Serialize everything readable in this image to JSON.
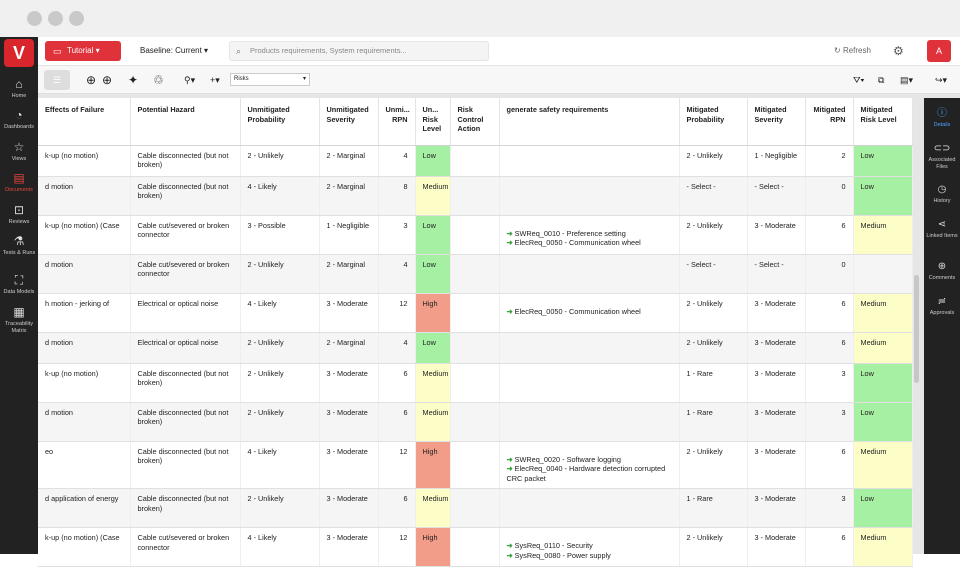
{
  "topbar": {
    "tutorial_label": "Tutorial",
    "baseline_label": "Baseline: Current",
    "search_placeholder": "Products requirements, System requirements...",
    "refresh_label": "Refresh",
    "red_button_label": "A"
  },
  "toolbar": {
    "view_select": "Risks"
  },
  "left_nav": [
    {
      "label": "Home",
      "icon": "home-icon"
    },
    {
      "label": "Dashboards",
      "icon": "dashboard-icon"
    },
    {
      "label": "Views",
      "icon": "star-icon"
    },
    {
      "label": "Documents",
      "icon": "document-icon",
      "active": true
    },
    {
      "label": "Reviews",
      "icon": "review-icon"
    },
    {
      "label": "Tests & Runs",
      "icon": "flask-icon"
    },
    {
      "label": "Data Models",
      "icon": "data-model-icon"
    },
    {
      "label": "Traceability Matrix",
      "icon": "matrix-icon"
    }
  ],
  "right_panel": [
    {
      "label": "Details",
      "icon": "info-icon",
      "active": true
    },
    {
      "label": "Associated Files",
      "icon": "attachment-icon"
    },
    {
      "label": "History",
      "icon": "history-icon"
    },
    {
      "label": "Linked Items",
      "icon": "share-icon"
    },
    {
      "label": "Comments",
      "icon": "comment-icon"
    },
    {
      "label": "Approvals",
      "icon": "approval-icon"
    }
  ],
  "table": {
    "columns": [
      {
        "label": "Effects of Failure"
      },
      {
        "label": "Potential Hazard"
      },
      {
        "label": "Unmitigated Probability"
      },
      {
        "label": "Unmitigated Severity"
      },
      {
        "label": "Unmi... RPN",
        "num": true
      },
      {
        "label": "Un... Risk Level"
      },
      {
        "label": "Risk Control Action"
      },
      {
        "label": "generate safety requirements"
      },
      {
        "label": "Mitigated Probability"
      },
      {
        "label": "Mitigated Severity"
      },
      {
        "label": "Mitigated RPN",
        "num": true
      },
      {
        "label": "Mitigated Risk Level"
      }
    ],
    "rows": [
      {
        "effect": "k-up (no motion)",
        "hazard": "Cable disconnected (but not broken)",
        "uprob": "2 - Unlikely",
        "usev": "2 - Marginal",
        "urpn": "4",
        "ulevel": "Low",
        "action": "",
        "reqs": [],
        "mprob": "2 - Unlikely",
        "msev": "1 - Negligible",
        "mrpn": "2",
        "mlevel": "Low"
      },
      {
        "effect": "d motion",
        "hazard": "Cable disconnected (but not broken)",
        "uprob": "4 - Likely",
        "usev": "2 - Marginal",
        "urpn": "8",
        "ulevel": "Medium",
        "action": "",
        "reqs": [],
        "mprob": "- Select -",
        "msev": "- Select -",
        "mrpn": "0",
        "mlevel": "Low"
      },
      {
        "effect": "k-up (no motion) (Case",
        "hazard": "Cable cut/severed or broken connector",
        "uprob": "3 - Possible",
        "usev": "1 - Negligible",
        "urpn": "3",
        "ulevel": "Low",
        "action": "",
        "reqs": [
          "SWReq_0010 - Preference setting",
          "ElecReq_0050 - Communication wheel"
        ],
        "mprob": "2 - Unlikely",
        "msev": "3 - Moderate",
        "mrpn": "6",
        "mlevel": "Medium"
      },
      {
        "effect": "d motion",
        "hazard": "Cable cut/severed or broken connector",
        "uprob": "2 - Unlikely",
        "usev": "2 - Marginal",
        "urpn": "4",
        "ulevel": "Low",
        "action": "",
        "reqs": [],
        "mprob": "- Select -",
        "msev": "- Select -",
        "mrpn": "0",
        "mlevel": ""
      },
      {
        "effect": "h motion - jerking of",
        "hazard": "Electrical or optical noise",
        "uprob": "4 - Likely",
        "usev": "3 - Moderate",
        "urpn": "12",
        "ulevel": "High",
        "action": "",
        "reqs": [
          "ElecReq_0050 - Communication wheel"
        ],
        "mprob": "2 - Unlikely",
        "msev": "3 - Moderate",
        "mrpn": "6",
        "mlevel": "Medium"
      },
      {
        "effect": "d motion",
        "hazard": "Electrical or optical noise",
        "uprob": "2 - Unlikely",
        "usev": "2 - Marginal",
        "urpn": "4",
        "ulevel": "Low",
        "action": "",
        "reqs": [],
        "mprob": "2 - Unlikely",
        "msev": "3 - Moderate",
        "mrpn": "6",
        "mlevel": "Medium"
      },
      {
        "effect": "k-up (no motion)",
        "hazard": "Cable disconnected (but not broken)",
        "uprob": "2 - Unlikely",
        "usev": "3 - Moderate",
        "urpn": "6",
        "ulevel": "Medium",
        "action": "",
        "reqs": [],
        "mprob": "1 - Rare",
        "msev": "3 - Moderate",
        "mrpn": "3",
        "mlevel": "Low"
      },
      {
        "effect": "d motion",
        "hazard": "Cable disconnected (but not broken)",
        "uprob": "2 - Unlikely",
        "usev": "3 - Moderate",
        "urpn": "6",
        "ulevel": "Medium",
        "action": "",
        "reqs": [],
        "mprob": "1 - Rare",
        "msev": "3 - Moderate",
        "mrpn": "3",
        "mlevel": "Low"
      },
      {
        "effect": "eo",
        "hazard": "Cable disconnected (but not broken)",
        "uprob": "4 - Likely",
        "usev": "3 - Moderate",
        "urpn": "12",
        "ulevel": "High",
        "action": "",
        "reqs": [
          "SWReq_0020 - Software logging",
          "ElecReq_0040 - Hardware detection corrupted CRC packet"
        ],
        "mprob": "2 - Unlikely",
        "msev": "3 - Moderate",
        "mrpn": "6",
        "mlevel": "Medium"
      },
      {
        "effect": "d application of energy",
        "hazard": "Cable disconnected (but not broken)",
        "uprob": "2 - Unlikely",
        "usev": "3 - Moderate",
        "urpn": "6",
        "ulevel": "Medium",
        "action": "",
        "reqs": [],
        "mprob": "1 - Rare",
        "msev": "3 - Moderate",
        "mrpn": "3",
        "mlevel": "Low"
      },
      {
        "effect": "k-up (no motion) (Case",
        "hazard": "Cable cut/severed or broken connector",
        "uprob": "4 - Likely",
        "usev": "3 - Moderate",
        "urpn": "12",
        "ulevel": "High",
        "action": "",
        "reqs": [
          "SysReq_0110 - Security",
          "SysReq_0080 - Power supply"
        ],
        "mprob": "2 - Unlikely",
        "msev": "3 - Moderate",
        "mrpn": "6",
        "mlevel": "Medium"
      }
    ]
  },
  "colors": {
    "accent": "#e0323a",
    "low": "#a6f0a3",
    "medium": "#fdfdc7",
    "high": "#f29c8a"
  }
}
